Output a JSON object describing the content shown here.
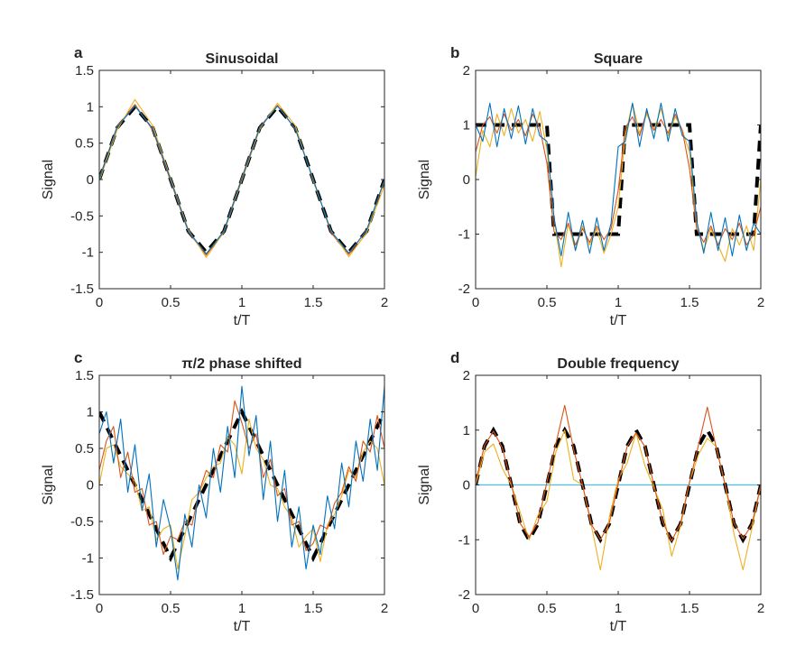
{
  "colors": {
    "blue": "#0072BD",
    "orange": "#D95319",
    "yellow": "#EDB120",
    "cyan": "#4DBEEE",
    "reference": "#000000"
  },
  "chart_data": [
    {
      "type": "line",
      "letter": "a",
      "title": "Sinusoidal",
      "xlabel": "t/T",
      "ylabel": "Signal",
      "xlim": [
        0,
        2
      ],
      "ylim": [
        -1.5,
        1.5
      ],
      "xticks": [
        0,
        0.5,
        1,
        1.5,
        2
      ],
      "xtick_labels": [
        "0",
        "0.5",
        "1",
        "1.5",
        "2"
      ],
      "yticks": [
        -1.5,
        -1,
        -0.5,
        0,
        0.5,
        1,
        1.5
      ],
      "ytick_labels": [
        "-1.5",
        "-1",
        "-0.5",
        "0",
        "0.5",
        "1",
        "1.5"
      ],
      "x": [
        0,
        0.125,
        0.25,
        0.375,
        0.5,
        0.625,
        0.75,
        0.875,
        1,
        1.125,
        1.25,
        1.375,
        1.5,
        1.625,
        1.75,
        1.875,
        2
      ],
      "series": [
        {
          "name": "reference",
          "style": "dashed",
          "values": [
            0,
            0.71,
            1,
            0.71,
            0,
            -0.71,
            -1,
            -0.71,
            0,
            0.71,
            1,
            0.71,
            0,
            -0.71,
            -1,
            -0.71,
            0
          ]
        },
        {
          "name": "orange",
          "values": [
            0.02,
            0.73,
            1.03,
            0.68,
            -0.02,
            -0.72,
            -1.04,
            -0.7,
            0.03,
            0.72,
            1.02,
            0.69,
            0.01,
            -0.73,
            -1.03,
            -0.69,
            -0.02
          ]
        },
        {
          "name": "yellow",
          "values": [
            -0.02,
            0.68,
            1.1,
            0.74,
            0.02,
            -0.69,
            -1.07,
            -0.72,
            -0.01,
            0.69,
            1.05,
            0.74,
            -0.02,
            -0.7,
            -1.06,
            -0.73,
            -0.08
          ]
        },
        {
          "name": "blue",
          "values": [
            0,
            0.72,
            1.01,
            0.7,
            0,
            -0.71,
            -1.02,
            -0.71,
            0.01,
            0.71,
            1.01,
            0.7,
            0,
            -0.71,
            -1.01,
            -0.7,
            0
          ]
        }
      ]
    },
    {
      "type": "line",
      "letter": "b",
      "title": "Square",
      "xlabel": "t/T",
      "ylabel": "Signal",
      "xlim": [
        0,
        2
      ],
      "ylim": [
        -2,
        2
      ],
      "xticks": [
        0,
        0.5,
        1,
        1.5,
        2
      ],
      "xtick_labels": [
        "0",
        "0.5",
        "1",
        "1.5",
        "2"
      ],
      "yticks": [
        -2,
        -1,
        0,
        1,
        2
      ],
      "ytick_labels": [
        "-2",
        "-1",
        "0",
        "1",
        "2"
      ],
      "x": [
        0,
        0.05,
        0.1,
        0.15,
        0.2,
        0.25,
        0.3,
        0.35,
        0.4,
        0.45,
        0.5,
        0.55,
        0.6,
        0.65,
        0.7,
        0.75,
        0.8,
        0.85,
        0.9,
        0.95,
        1,
        1.05,
        1.1,
        1.15,
        1.2,
        1.25,
        1.3,
        1.35,
        1.4,
        1.45,
        1.5,
        1.55,
        1.6,
        1.65,
        1.7,
        1.75,
        1.8,
        1.85,
        1.9,
        1.95,
        2
      ],
      "series": [
        {
          "name": "reference",
          "style": "dashed",
          "values": [
            1,
            1,
            1,
            1,
            1,
            1,
            1,
            1,
            1,
            1,
            1,
            -1,
            -1,
            -1,
            -1,
            -1,
            -1,
            -1,
            -1,
            -1,
            -1,
            1,
            1,
            1,
            1,
            1,
            1,
            1,
            1,
            1,
            1,
            -1,
            -1,
            -1,
            -1,
            -1,
            -1,
            -1,
            -1,
            -1,
            1
          ]
        },
        {
          "name": "yellow",
          "values": [
            0.05,
            0.9,
            0.6,
            1.2,
            0.8,
            1.3,
            0.85,
            1.1,
            0.7,
            1.25,
            0.55,
            -0.7,
            -1.6,
            -0.8,
            -1.3,
            -0.85,
            -1.2,
            -0.9,
            -1.35,
            -1.0,
            -0.5,
            0.8,
            1.4,
            0.85,
            1.2,
            0.9,
            1.3,
            0.8,
            1.15,
            0.9,
            0.5,
            -0.8,
            -1.3,
            -0.9,
            -1.2,
            -1.5,
            -0.9,
            -1.2,
            -0.85,
            -1.3,
            0.0
          ]
        },
        {
          "name": "orange",
          "values": [
            0.5,
            1.0,
            1.15,
            0.85,
            1.2,
            0.9,
            1.1,
            0.8,
            1.2,
            0.95,
            0.3,
            -0.95,
            -1.1,
            -0.8,
            -1.2,
            -0.9,
            -1.15,
            -0.85,
            -1.1,
            -0.9,
            -0.2,
            0.95,
            1.15,
            0.8,
            1.25,
            0.9,
            1.1,
            0.85,
            1.2,
            0.9,
            0.2,
            -0.9,
            -1.15,
            -0.85,
            -1.2,
            -0.9,
            -1.1,
            -0.8,
            -1.2,
            -1.0,
            -0.5
          ]
        },
        {
          "name": "blue",
          "values": [
            1.0,
            0.7,
            1.4,
            0.6,
            1.3,
            0.75,
            1.35,
            0.65,
            1.3,
            0.8,
            0.7,
            -0.7,
            -1.4,
            -0.6,
            -1.3,
            -0.75,
            -1.35,
            -0.7,
            -1.3,
            -0.8,
            0.6,
            0.7,
            1.4,
            0.6,
            1.3,
            0.75,
            1.4,
            0.7,
            1.3,
            0.8,
            0.7,
            -0.75,
            -1.35,
            -0.6,
            -1.3,
            -0.7,
            -1.4,
            -0.65,
            -1.3,
            -0.8,
            -1.0
          ]
        }
      ]
    },
    {
      "type": "line",
      "letter": "c",
      "title": "π/2 phase shifted",
      "xlabel": "t/T",
      "ylabel": "Signal",
      "xlim": [
        0,
        2
      ],
      "ylim": [
        -1.5,
        1.5
      ],
      "xticks": [
        0,
        0.5,
        1,
        1.5,
        2
      ],
      "xtick_labels": [
        "0",
        "0.5",
        "1",
        "1.5",
        "2"
      ],
      "yticks": [
        -1.5,
        -1,
        -0.5,
        0,
        0.5,
        1,
        1.5
      ],
      "ytick_labels": [
        "-1.5",
        "-1",
        "-0.5",
        "0",
        "0.5",
        "1",
        "1.5"
      ],
      "x": [
        0,
        0.05,
        0.1,
        0.15,
        0.2,
        0.25,
        0.3,
        0.35,
        0.4,
        0.45,
        0.5,
        0.55,
        0.6,
        0.65,
        0.7,
        0.75,
        0.8,
        0.85,
        0.9,
        0.95,
        1,
        1.05,
        1.1,
        1.15,
        1.2,
        1.25,
        1.3,
        1.35,
        1.4,
        1.45,
        1.5,
        1.55,
        1.6,
        1.65,
        1.7,
        1.75,
        1.8,
        1.85,
        1.9,
        1.95,
        2
      ],
      "series": [
        {
          "name": "reference",
          "style": "dashed",
          "values": [
            1.0,
            0.8,
            0.6,
            0.4,
            0.2,
            0.0,
            -0.2,
            -0.4,
            -0.6,
            -0.8,
            -1.0,
            -0.8,
            -0.6,
            -0.4,
            -0.2,
            0.0,
            0.2,
            0.4,
            0.6,
            0.8,
            1.0,
            0.8,
            0.6,
            0.4,
            0.2,
            0.0,
            -0.2,
            -0.4,
            -0.6,
            -0.8,
            -1.0,
            -0.8,
            -0.6,
            -0.4,
            -0.2,
            0.0,
            0.2,
            0.4,
            0.6,
            0.8,
            1.0
          ]
        },
        {
          "name": "yellow",
          "values": [
            0.0,
            0.5,
            0.55,
            0.25,
            0.15,
            0.05,
            -0.35,
            -0.3,
            -0.75,
            -0.6,
            -0.55,
            -1.15,
            -0.7,
            -0.2,
            -0.1,
            0.1,
            0.25,
            0.3,
            0.65,
            0.55,
            0.15,
            0.9,
            0.5,
            0.35,
            0.0,
            -0.05,
            -0.3,
            -0.45,
            -0.85,
            -0.7,
            -0.6,
            -1.05,
            -0.55,
            -0.4,
            -0.15,
            0.2,
            0.1,
            0.45,
            0.6,
            0.5,
            0.0
          ]
        },
        {
          "name": "orange",
          "values": [
            0.2,
            0.6,
            0.8,
            0.1,
            0.45,
            -0.1,
            -0.05,
            -0.55,
            -0.5,
            -0.95,
            -0.7,
            -0.75,
            -0.5,
            -0.55,
            -0.1,
            0.2,
            0.1,
            0.55,
            0.45,
            1.15,
            0.85,
            0.5,
            0.7,
            0.1,
            0.35,
            -0.15,
            -0.05,
            -0.55,
            -0.5,
            -0.9,
            -0.8,
            -0.55,
            -0.6,
            -0.25,
            -0.1,
            0.25,
            0.05,
            0.6,
            0.45,
            0.95,
            0.5
          ]
        },
        {
          "name": "blue",
          "values": [
            0.7,
            1.0,
            0.3,
            0.9,
            -0.1,
            0.55,
            -0.35,
            0.15,
            -0.85,
            -0.2,
            -0.6,
            -1.3,
            -0.4,
            -0.85,
            0.0,
            -0.45,
            0.5,
            -0.1,
            0.8,
            0.1,
            1.35,
            0.4,
            0.95,
            -0.2,
            0.6,
            -0.5,
            0.2,
            -0.85,
            -0.3,
            -1.15,
            -0.55,
            -0.95,
            -0.15,
            -0.6,
            0.3,
            -0.3,
            0.6,
            0.05,
            0.9,
            0.2,
            1.35
          ]
        }
      ]
    },
    {
      "type": "line",
      "letter": "d",
      "title": "Double frequency",
      "xlabel": "t/T",
      "ylabel": "Signal",
      "xlim": [
        0,
        2
      ],
      "ylim": [
        -2,
        2
      ],
      "xticks": [
        0,
        0.5,
        1,
        1.5,
        2
      ],
      "xtick_labels": [
        "0",
        "0.5",
        "1",
        "1.5",
        "2"
      ],
      "yticks": [
        -2,
        -1,
        0,
        1,
        2
      ],
      "ytick_labels": [
        "-2",
        "-1",
        "0",
        "1",
        "2"
      ],
      "x": [
        0,
        0.0625,
        0.125,
        0.1875,
        0.25,
        0.3125,
        0.375,
        0.4375,
        0.5,
        0.5625,
        0.625,
        0.6875,
        0.75,
        0.8125,
        0.875,
        0.9375,
        1,
        1.0625,
        1.125,
        1.1875,
        1.25,
        1.3125,
        1.375,
        1.4375,
        1.5,
        1.5625,
        1.625,
        1.6875,
        1.75,
        1.8125,
        1.875,
        1.9375,
        2
      ],
      "series": [
        {
          "name": "cyan",
          "values": [
            0,
            0,
            0,
            0,
            0,
            0,
            0,
            0,
            0,
            0,
            0,
            0,
            0,
            0,
            0,
            0,
            0,
            0,
            0,
            0,
            0,
            0,
            0,
            0,
            0,
            0,
            0,
            0,
            0,
            0,
            0,
            0,
            0
          ]
        },
        {
          "name": "reference",
          "style": "dashed",
          "values": [
            0,
            0.71,
            1,
            0.71,
            0,
            -0.71,
            -1,
            -0.71,
            0,
            0.71,
            1,
            0.71,
            0,
            -0.71,
            -1,
            -0.71,
            0,
            0.71,
            1,
            0.71,
            0,
            -0.71,
            -1,
            -0.71,
            0,
            0.71,
            1,
            0.71,
            0,
            -0.71,
            -1,
            -0.71,
            0
          ]
        },
        {
          "name": "yellow",
          "values": [
            0.0,
            0.6,
            0.75,
            0.3,
            0.0,
            -0.5,
            -1.0,
            -0.55,
            -0.3,
            0.6,
            1.0,
            0.1,
            0.0,
            -0.75,
            -1.55,
            -0.6,
            0.1,
            0.4,
            0.95,
            0.35,
            -0.05,
            -0.45,
            -1.3,
            -0.75,
            0.05,
            0.55,
            0.85,
            0.7,
            0.0,
            -0.9,
            -1.55,
            -0.8,
            0.0
          ]
        },
        {
          "name": "orange",
          "values": [
            0.05,
            0.72,
            0.98,
            0.68,
            0.02,
            -0.7,
            -0.95,
            -0.68,
            0.05,
            0.75,
            1.45,
            0.65,
            0.0,
            -0.72,
            -1.0,
            -0.7,
            0.02,
            0.7,
            0.95,
            0.7,
            0.0,
            -0.68,
            -1.02,
            -0.7,
            0.05,
            0.72,
            1.42,
            0.68,
            0.0,
            -0.7,
            -0.98,
            -0.72,
            0.0
          ]
        }
      ]
    }
  ]
}
